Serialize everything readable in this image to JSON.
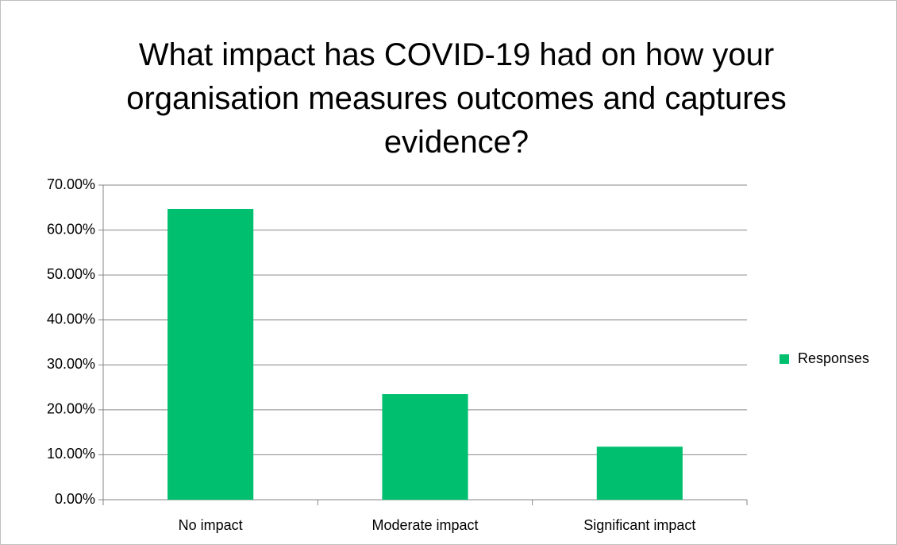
{
  "chart_data": {
    "type": "bar",
    "title": "What impact has COVID-19 had on how your organisation measures outcomes and captures evidence?",
    "categories": [
      "No impact",
      "Moderate impact",
      "Significant impact"
    ],
    "series": [
      {
        "name": "Responses",
        "color": "#00bf6f",
        "values": [
          64.7,
          23.5,
          11.8
        ]
      }
    ],
    "ylim": [
      0,
      70
    ],
    "yticks": [
      {
        "value": 0,
        "label": "0.00%"
      },
      {
        "value": 10,
        "label": "10.00%"
      },
      {
        "value": 20,
        "label": "20.00%"
      },
      {
        "value": 30,
        "label": "30.00%"
      },
      {
        "value": 40,
        "label": "40.00%"
      },
      {
        "value": 50,
        "label": "50.00%"
      },
      {
        "value": 60,
        "label": "60.00%"
      },
      {
        "value": 70,
        "label": "70.00%"
      }
    ],
    "grid": true,
    "legend": "right"
  }
}
